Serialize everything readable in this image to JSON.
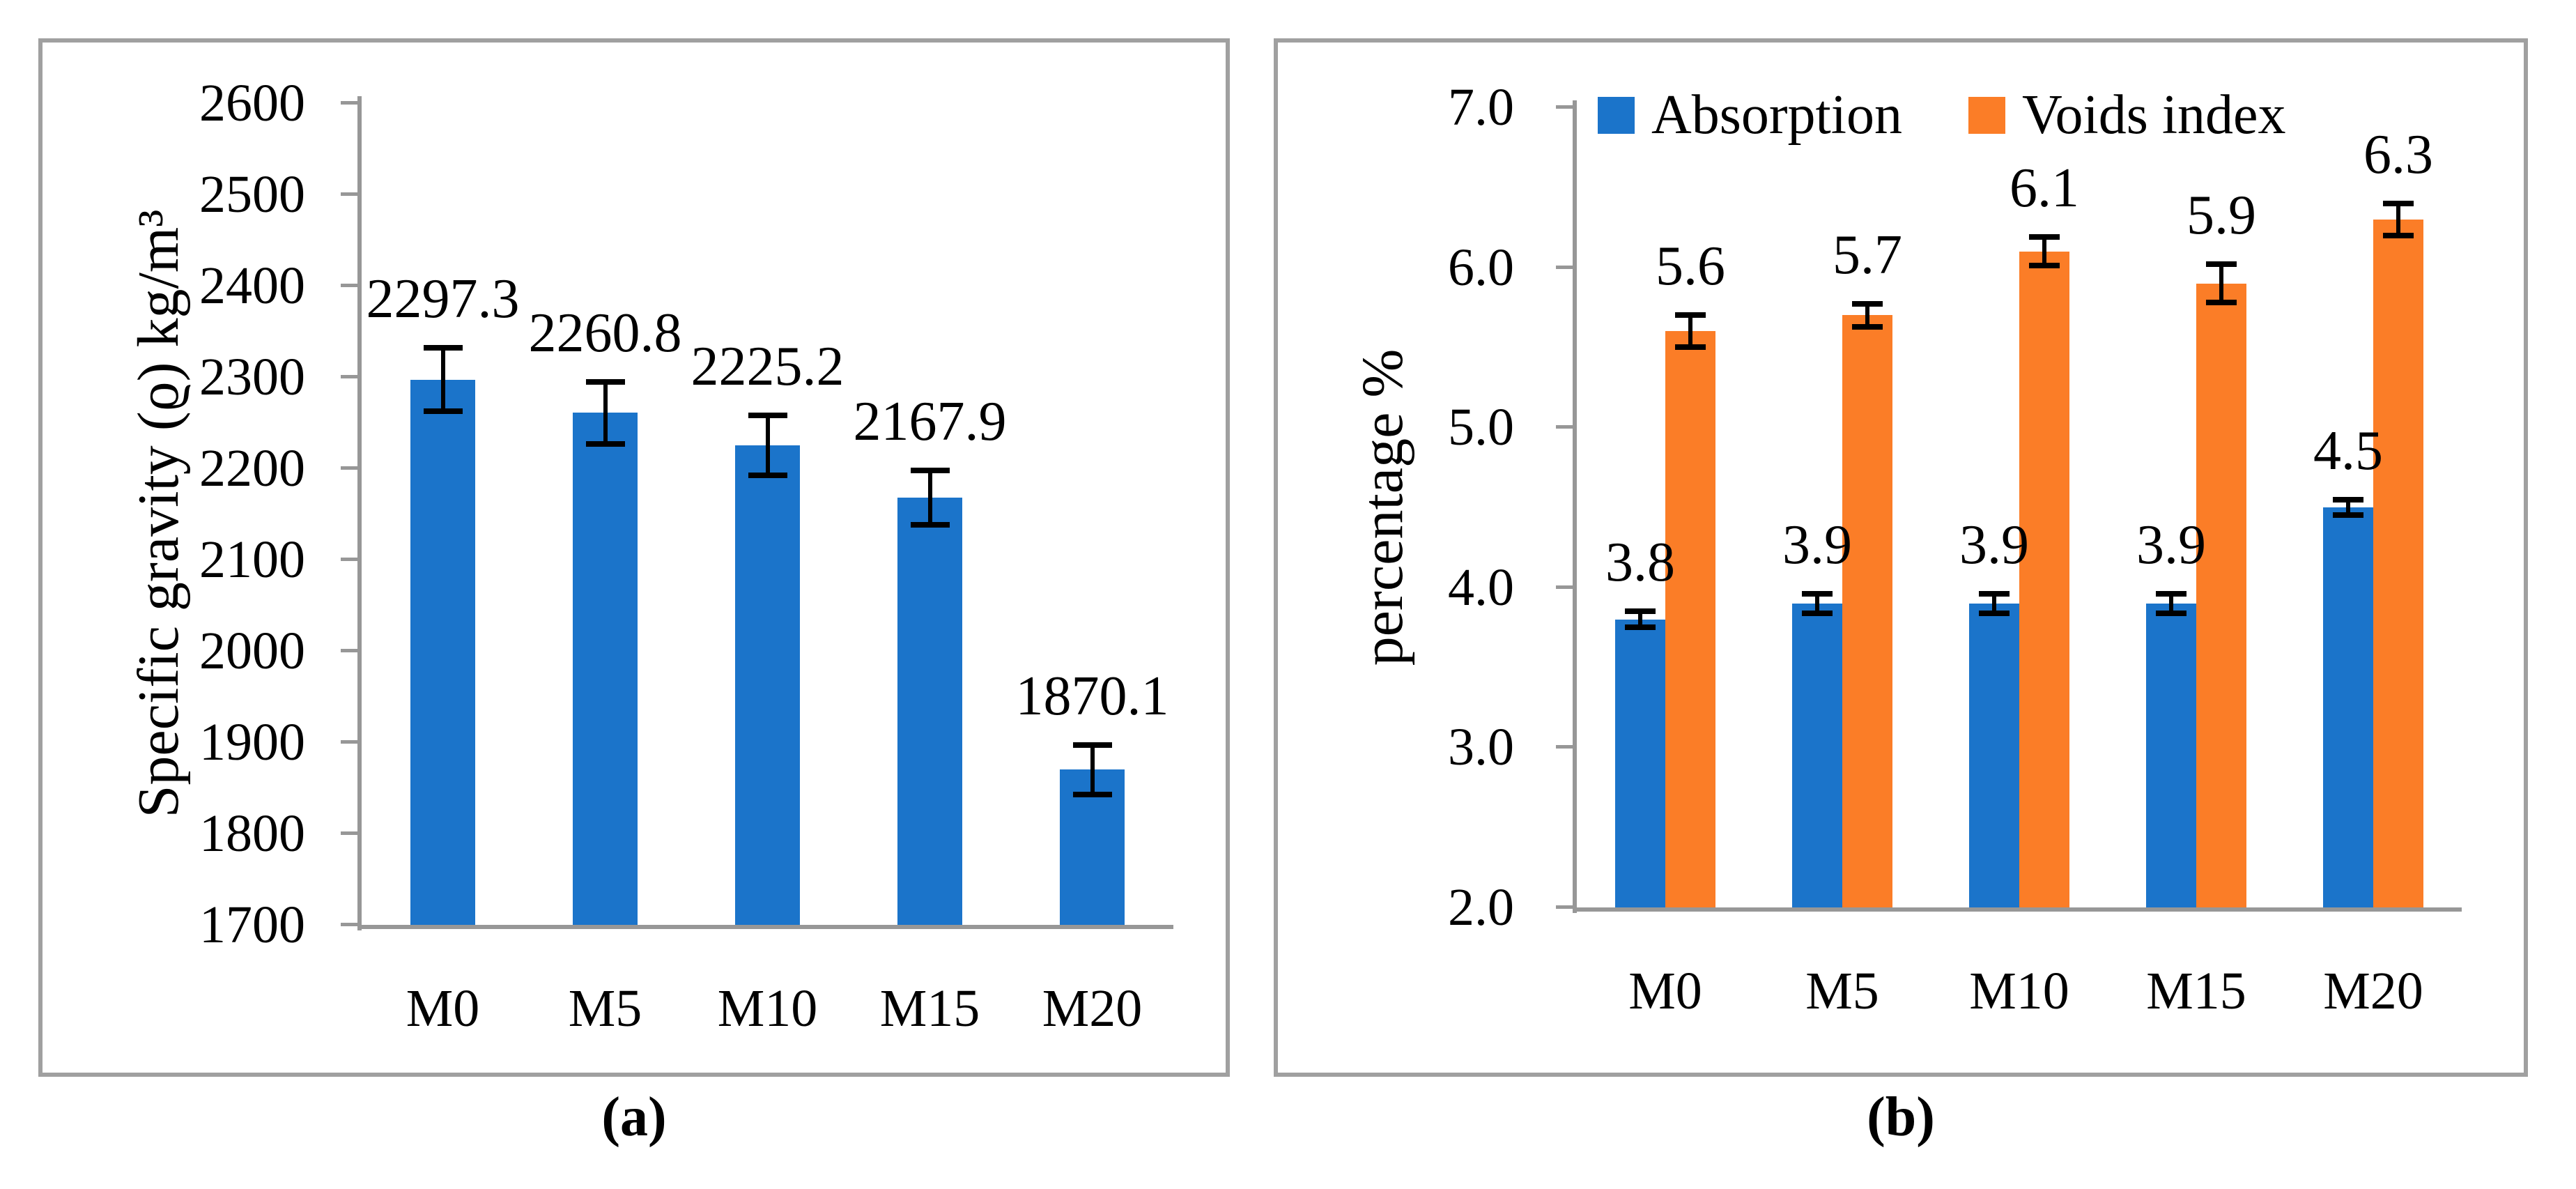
{
  "figure": {
    "background": "#FFFFFF",
    "panels": [
      {
        "caption": "(a)"
      },
      {
        "caption": "(b)"
      }
    ]
  },
  "colors": {
    "bar_blue": "#1B74CA",
    "bar_orange": "#FB7D27",
    "axis_gray": "#979797",
    "panel_border_gray": "#A0A0A0",
    "text_black": "#000000"
  },
  "chart_data": [
    {
      "type": "bar",
      "panel": "a",
      "title": "",
      "categories": [
        "M0",
        "M5",
        "M10",
        "M15",
        "M20"
      ],
      "series": [
        {
          "name": "Specific gravity",
          "color": "#1B74CA",
          "values": [
            2297.3,
            2260.8,
            2225.2,
            2167.9,
            1870.1
          ],
          "value_labels": [
            "2297.3",
            "2260.8",
            "2225.2",
            "2167.9",
            "1870.1"
          ],
          "errors": [
            35,
            34,
            33,
            30,
            27
          ]
        }
      ],
      "xlabel": "",
      "ylabel": "Specific gravity (ϱ) kg/m³",
      "ylim": [
        1700,
        2600
      ],
      "yticks": [
        2600,
        2500,
        2400,
        2300,
        2200,
        2100,
        2000,
        1900,
        1800,
        1700
      ],
      "ytick_labels": [
        "2600",
        "2500",
        "2400",
        "2300",
        "2200",
        "2100",
        "2000",
        "1900",
        "1800",
        "1700"
      ],
      "grid": false,
      "legend": false,
      "error_bars": true
    },
    {
      "type": "bar",
      "panel": "b",
      "title": "",
      "categories": [
        "M0",
        "M5",
        "M10",
        "M15",
        "M20"
      ],
      "series": [
        {
          "name": "Absorption",
          "color": "#1B74CA",
          "values": [
            3.8,
            3.9,
            3.9,
            3.9,
            4.5
          ],
          "value_labels": [
            "3.8",
            "3.9",
            "3.9",
            "3.9",
            "4.5"
          ],
          "errors": [
            0.05,
            0.06,
            0.06,
            0.06,
            0.05
          ]
        },
        {
          "name": "Voids index",
          "color": "#FB7D27",
          "values": [
            5.6,
            5.7,
            6.1,
            5.9,
            6.3
          ],
          "value_labels": [
            "5.6",
            "5.7",
            "6.1",
            "5.9",
            "6.3"
          ],
          "errors": [
            0.1,
            0.07,
            0.09,
            0.12,
            0.1
          ]
        }
      ],
      "xlabel": "",
      "ylabel": "percentage %",
      "ylim": [
        2.0,
        7.0
      ],
      "yticks": [
        7.0,
        6.0,
        5.0,
        4.0,
        3.0,
        2.0
      ],
      "ytick_labels": [
        "7.0",
        "6.0",
        "5.0",
        "4.0",
        "3.0",
        "2.0"
      ],
      "grid": false,
      "legend": true,
      "legend_position": "top",
      "error_bars": true
    }
  ]
}
